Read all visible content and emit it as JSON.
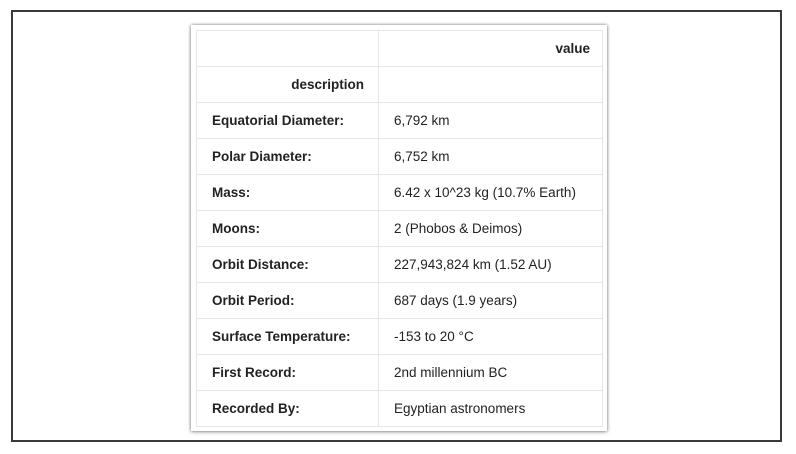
{
  "table": {
    "column_header": "value",
    "index_name": "description",
    "rows": [
      {
        "label": "Equatorial Diameter:",
        "value": "6,792 km"
      },
      {
        "label": "Polar Diameter:",
        "value": "6,752 km"
      },
      {
        "label": "Mass:",
        "value": "6.42 x 10^23 kg (10.7% Earth)"
      },
      {
        "label": "Moons:",
        "value": "2 (Phobos & Deimos)"
      },
      {
        "label": "Orbit Distance:",
        "value": "227,943,824 km (1.52 AU)"
      },
      {
        "label": "Orbit Period:",
        "value": "687 days (1.9 years)"
      },
      {
        "label": "Surface Temperature:",
        "value": "-153 to 20 °C"
      },
      {
        "label": "First Record:",
        "value": "2nd millennium BC"
      },
      {
        "label": "Recorded By:",
        "value": "Egyptian astronomers"
      }
    ]
  },
  "colors": {
    "border": "#e6e6e6",
    "text": "#222222",
    "frame": "#3a3a3a"
  }
}
